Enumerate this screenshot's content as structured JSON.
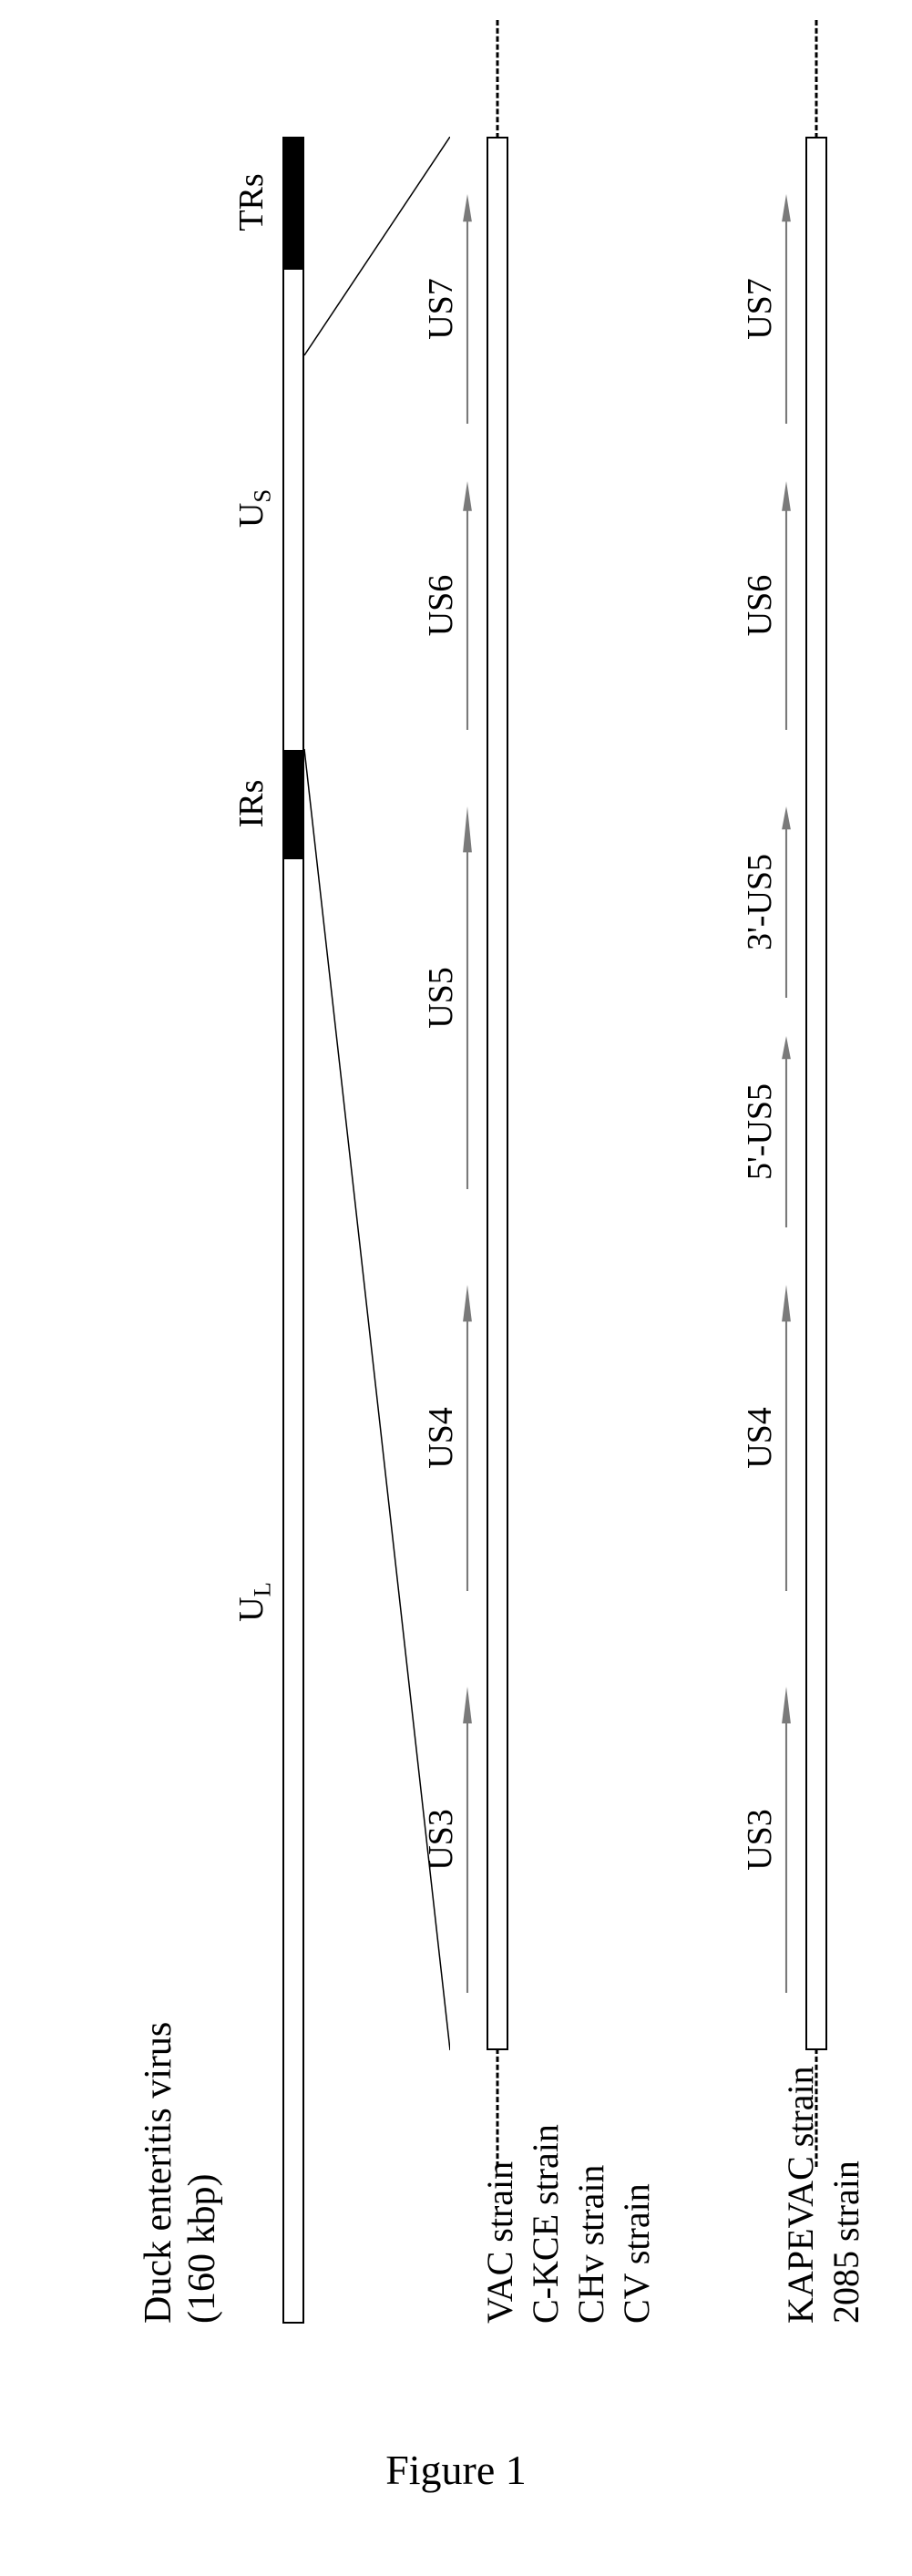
{
  "figure_caption": "Figure 1",
  "genome": {
    "title_line1": "Duck enteritis virus",
    "title_line2": "(160 kbp)",
    "segments": {
      "UL": {
        "label": "U",
        "sub": "L",
        "left_pct": 0,
        "width_pct": 67,
        "filled": false,
        "label_pos_pct": 33
      },
      "IRs": {
        "label": "IRs",
        "sub": "",
        "left_pct": 67,
        "width_pct": 5,
        "filled": true,
        "label_pos_pct": 69.5
      },
      "US": {
        "label": "U",
        "sub": "S",
        "left_pct": 72,
        "width_pct": 22,
        "filled": false,
        "label_pos_pct": 83
      },
      "TRs": {
        "label": "TRs",
        "sub": "",
        "left_pct": 94,
        "width_pct": 6,
        "filled": true,
        "label_pos_pct": 97
      }
    },
    "bar_color": "#ffffff",
    "filled_color": "#000000",
    "border_color": "#000000"
  },
  "zoom": {
    "src_left_pct": 72,
    "src_right_pct": 90,
    "line_color": "#000000"
  },
  "strain_set_1": {
    "labels": [
      "VAC strain",
      "C-KCE strain",
      "CHv strain",
      "CV strain"
    ],
    "genes": [
      {
        "name": "US3",
        "left_pct": 3,
        "width_pct": 16
      },
      {
        "name": "US4",
        "left_pct": 24,
        "width_pct": 16
      },
      {
        "name": "US5",
        "left_pct": 45,
        "width_pct": 20
      },
      {
        "name": "US6",
        "left_pct": 69,
        "width_pct": 13
      },
      {
        "name": "US7",
        "left_pct": 85,
        "width_pct": 12
      }
    ],
    "arrow_color": "#7a7a7a"
  },
  "strain_set_2": {
    "labels": [
      "KAPEVAC strain",
      "2085 strain"
    ],
    "genes": [
      {
        "name": "US3",
        "left_pct": 3,
        "width_pct": 16
      },
      {
        "name": "US4",
        "left_pct": 24,
        "width_pct": 16
      },
      {
        "name": "5'-US5",
        "left_pct": 43,
        "width_pct": 10
      },
      {
        "name": "3'-US5",
        "left_pct": 55,
        "width_pct": 10
      },
      {
        "name": "US6",
        "left_pct": 69,
        "width_pct": 13
      },
      {
        "name": "US7",
        "left_pct": 85,
        "width_pct": 12
      }
    ],
    "arrow_color": "#7a7a7a"
  },
  "colors": {
    "background": "#ffffff",
    "text": "#000000"
  },
  "typography": {
    "title_fontsize": 42,
    "label_fontsize": 38,
    "font_family": "Times New Roman"
  }
}
